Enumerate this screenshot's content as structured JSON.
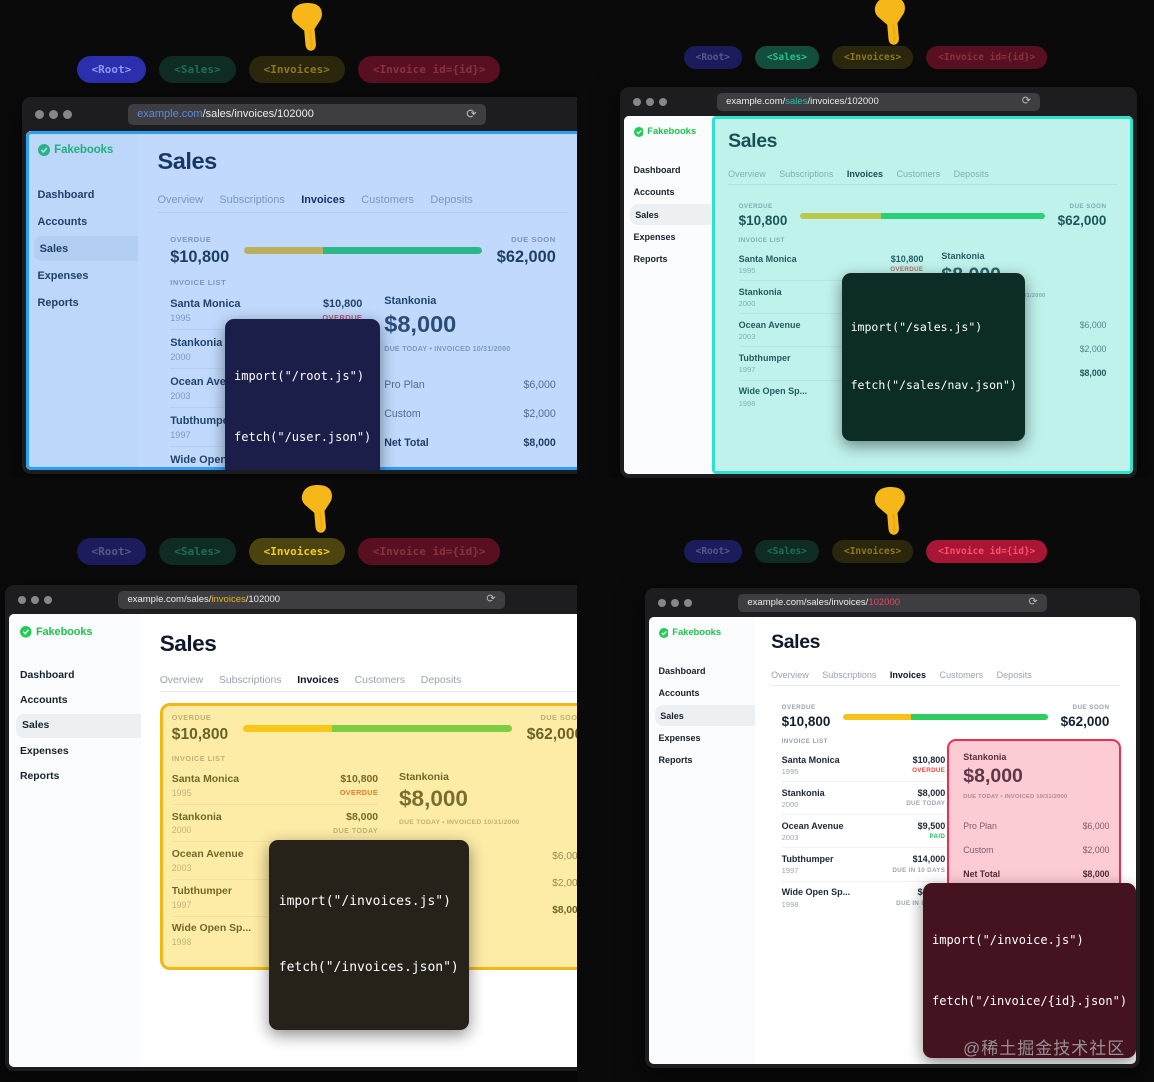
{
  "page": {
    "watermark": "@稀土掘金技术社区"
  },
  "browser": {
    "reload_icon": "⟳"
  },
  "pills": {
    "labels": [
      "<Root>",
      "<Sales>",
      "<Invoices>",
      "<Invoice id={id}>"
    ],
    "colors": [
      {
        "text": "#8f97f8",
        "bg": "#2b2fae"
      },
      {
        "text": "#25c08b",
        "bg": "#124d3d"
      },
      {
        "text": "#f7cd16",
        "bg": "#4c440e"
      },
      {
        "text": "#ff4f6e",
        "bg": "#a81535"
      }
    ]
  },
  "app": {
    "logo": "Fakebooks",
    "logo_color": "#1fc24d",
    "sidebar": [
      "Dashboard",
      "Accounts",
      "Sales",
      "Expenses",
      "Reports"
    ],
    "sidebar_active": "Sales",
    "title": "Sales",
    "tabs": [
      "Overview",
      "Subscriptions",
      "Invoices",
      "Customers",
      "Deposits"
    ],
    "active_tab": "Invoices",
    "summary": {
      "overdue_label": "OVERDUE",
      "overdue_amount": "$10,800",
      "due_soon_label": "DUE SOON",
      "due_soon_amount": "$62,000",
      "bar": {
        "overdue_pct": 33,
        "remaining_pct": 67,
        "overdue_color": "#f7c31a",
        "remaining_color": "#2fcd5e"
      }
    },
    "list_label": "INVOICE LIST",
    "invoices": [
      {
        "name": "Santa Monica",
        "year": "1995",
        "amount": "$10,800",
        "status": "OVERDUE",
        "status_color": "#ee4437"
      },
      {
        "name": "Stankonia",
        "year": "2000",
        "amount": "$8,000",
        "status": "DUE TODAY",
        "status_color": "#9ca6b2"
      },
      {
        "name": "Ocean Avenue",
        "year": "2003",
        "amount": "$9,500",
        "status": "PAID",
        "status_color": "#23c161"
      },
      {
        "name": "Tubthumper",
        "year": "1997",
        "amount": "$14,000",
        "status": "DUE IN 10 DAYS",
        "status_color": "#9ca6b2"
      },
      {
        "name": "Wide Open Sp...",
        "year": "1998",
        "amount": "$4,600",
        "status": "DUE IN 8 DAYS",
        "status_color": "#9ca6b2"
      }
    ],
    "detail": {
      "name": "Stankonia",
      "amount": "$8,000",
      "meta": "DUE TODAY • INVOICED 10/31/2000",
      "items": [
        {
          "label": "Pro Plan",
          "value": "$6,000"
        },
        {
          "label": "Custom",
          "value": "$2,000"
        }
      ],
      "total_label": "Net Total",
      "total_value": "$8,000"
    }
  },
  "quadrants": [
    {
      "id": "root",
      "active_pill": 0,
      "url": {
        "pre": "",
        "highlight": "example.com",
        "post": "/sales/invoices/102000",
        "highlight_color": "#5a8bd8"
      },
      "tooltip": {
        "lines": [
          "import(\"/root.js\")",
          "fetch(\"/user.json\")"
        ],
        "bg": "#1a1e49"
      },
      "highlight": {
        "region": "window",
        "border": "#2e9df5",
        "overlay": "rgba(47,130,246,0.30)"
      }
    },
    {
      "id": "sales",
      "active_pill": 1,
      "url": {
        "pre": "example.com/",
        "highlight": "sales",
        "post": "/invoices/102000",
        "highlight_color": "#2bbfae"
      },
      "tooltip": {
        "lines": [
          "import(\"/sales.js\")",
          "fetch(\"/sales/nav.json\")"
        ],
        "bg": "#0c2d26"
      },
      "highlight": {
        "region": "main",
        "border": "#2fe3cb",
        "overlay": "rgba(45,212,191,0.30)"
      }
    },
    {
      "id": "invoices",
      "active_pill": 2,
      "url": {
        "pre": "example.com/sales/",
        "highlight": "invoices",
        "post": "/102000",
        "highlight_color": "#e7b416"
      },
      "tooltip": {
        "lines": [
          "import(\"/invoices.js\")",
          "fetch(\"/invoices.json\")"
        ],
        "bg": "#26221a"
      },
      "highlight": {
        "region": "invoices",
        "border": "#f2b616",
        "overlay": "rgba(250,204,21,0.38)"
      }
    },
    {
      "id": "invoice",
      "active_pill": 3,
      "url": {
        "pre": "example.com/sales/invoices/",
        "highlight": "102000",
        "post": "",
        "highlight_color": "#e24a5e"
      },
      "tooltip": {
        "lines": [
          "import(\"/invoice.js\")",
          "fetch(\"/invoice/{id}.json\")"
        ],
        "bg": "#44131f"
      },
      "highlight": {
        "region": "detail",
        "border": "#ea2f50",
        "overlay": "rgba(244,63,94,0.27)"
      }
    }
  ]
}
